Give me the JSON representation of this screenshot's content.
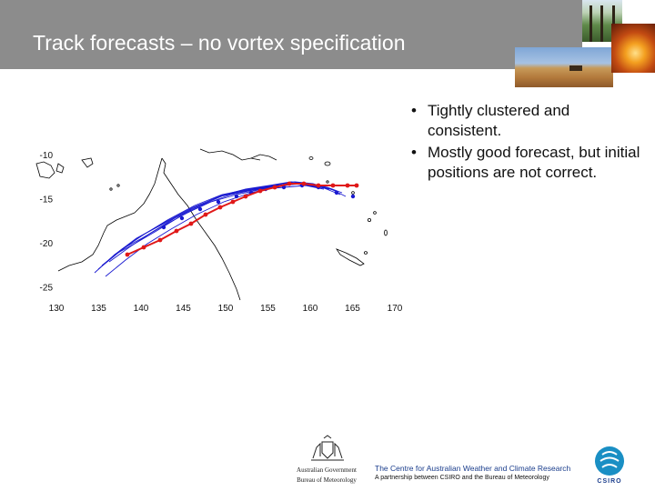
{
  "slide": {
    "title": "Track forecasts – no vortex specification",
    "bullets": [
      "Tightly clustered and consistent.",
      "Mostly good forecast, but initial positions are not correct."
    ],
    "bullet_glyph": "•"
  },
  "map": {
    "x_ticks": [
      "130",
      "135",
      "140",
      "145",
      "150",
      "155",
      "160",
      "165",
      "170"
    ],
    "y_ticks": [
      "-10",
      "-15",
      "-20",
      "-25"
    ],
    "colors": {
      "observed": "#e01818",
      "forecast": "#1a1ad0",
      "coast": "#000000"
    }
  },
  "footer": {
    "gov_line1": "Australian Government",
    "gov_line2": "Bureau of Meteorology",
    "centre": "The Centre for Australian Weather and Climate Research",
    "partnership": "A partnership between CSIRO and the Bureau of Meteorology",
    "csiro": "CSIRO"
  },
  "icons": [
    "forest-photo",
    "bushfire-photo",
    "wheat-field-photo",
    "coat-of-arms-icon",
    "csiro-logo-icon"
  ]
}
